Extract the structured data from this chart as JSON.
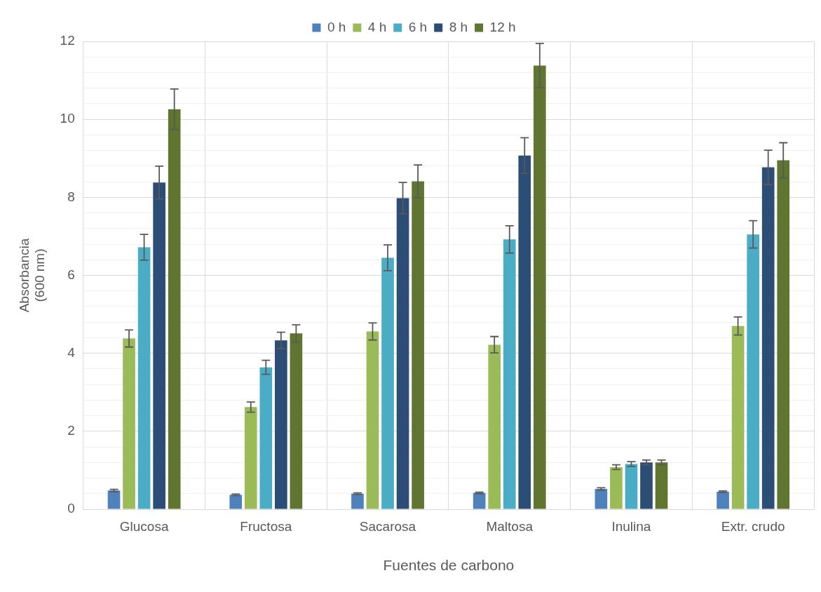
{
  "chart_data": {
    "type": "bar",
    "xlabel": "Fuentes de carbono",
    "ylabel": "Absorbancia\n(600 nm)",
    "categories": [
      "Glucosa",
      "Fructosa",
      "Sacarosa",
      "Maltosa",
      "Inulina",
      "Extr. crudo"
    ],
    "series": [
      {
        "name": "0 h",
        "color": "#4f81bd",
        "values": [
          0.48,
          0.37,
          0.4,
          0.42,
          0.52,
          0.45
        ],
        "errors": [
          0.03,
          0.02,
          0.02,
          0.02,
          0.03,
          0.02
        ]
      },
      {
        "name": "4 h",
        "color": "#9bbb59",
        "values": [
          4.38,
          2.62,
          4.56,
          4.22,
          1.08,
          4.7
        ],
        "errors": [
          0.22,
          0.13,
          0.22,
          0.21,
          0.06,
          0.23
        ]
      },
      {
        "name": "6 h",
        "color": "#4bacc6",
        "values": [
          6.72,
          3.64,
          6.45,
          6.92,
          1.16,
          7.05
        ],
        "errors": [
          0.33,
          0.18,
          0.33,
          0.35,
          0.06,
          0.35
        ]
      },
      {
        "name": "8 h",
        "color": "#2c4d75",
        "values": [
          8.38,
          4.33,
          7.98,
          9.07,
          1.2,
          8.77
        ],
        "errors": [
          0.42,
          0.21,
          0.4,
          0.46,
          0.06,
          0.44
        ]
      },
      {
        "name": "12 h",
        "color": "#5f7530",
        "values": [
          10.26,
          4.51,
          8.41,
          11.38,
          1.2,
          8.95
        ],
        "errors": [
          0.52,
          0.22,
          0.42,
          0.57,
          0.06,
          0.45
        ]
      }
    ],
    "ylim": [
      0,
      12
    ],
    "yticks": [
      0,
      {
        "value": 0.4,
        "label": null
      },
      {
        "value": 0.8,
        "label": null
      },
      {
        "value": 1.2,
        "label": null
      },
      {
        "value": 1.6,
        "label": null
      },
      2,
      {
        "value": 2.4,
        "label": null
      },
      {
        "value": 2.8,
        "label": null
      },
      {
        "value": 3.2,
        "label": null
      },
      {
        "value": 3.6,
        "label": null
      },
      4,
      {
        "value": 4.4,
        "label": null
      },
      {
        "value": 4.8,
        "label": null
      },
      {
        "value": 5.2,
        "label": null
      },
      {
        "value": 5.6,
        "label": null
      },
      6,
      {
        "value": 6.4,
        "label": null
      },
      {
        "value": 6.8,
        "label": null
      },
      {
        "value": 7.2,
        "label": null
      },
      {
        "value": 7.6,
        "label": null
      },
      8,
      {
        "value": 8.4,
        "label": null
      },
      {
        "value": 8.8,
        "label": null
      },
      {
        "value": 9.2,
        "label": null
      },
      {
        "value": 9.6,
        "label": null
      },
      10,
      {
        "value": 10.4,
        "label": null
      },
      {
        "value": 10.8,
        "label": null
      },
      {
        "value": 11.2,
        "label": null
      },
      {
        "value": 11.6,
        "label": null
      },
      12
    ],
    "grid": true,
    "legend": "top"
  }
}
